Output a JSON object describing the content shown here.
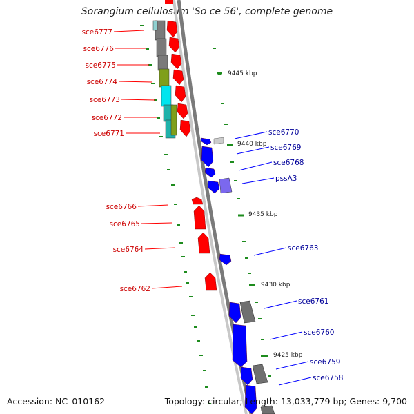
{
  "title": "Sorangium cellulosum 'So ce 56', complete genome",
  "footer": {
    "accession": "Accession: NC_010162",
    "topology": "Topology: circular; Length: 13,033,779 bp; Genes: 9,700"
  },
  "colors": {
    "forward_strand": "#ff0000",
    "reverse_strand": "#0000ff",
    "backbone": "#808080",
    "tick": "#1e8c1e",
    "label_forward": "#cc0000",
    "label_reverse": "#000099"
  },
  "scale_labels": [
    "9445 kbp",
    "9440 kbp",
    "9435 kbp",
    "9430 kbp",
    "9425 kbp"
  ],
  "genes_left": [
    "sce6777",
    "sce6776",
    "sce6775",
    "sce6774",
    "sce6773",
    "sce6772",
    "sce6771",
    "sce6766",
    "sce6765",
    "sce6764",
    "sce6762"
  ],
  "genes_right": [
    "sce6770",
    "sce6769",
    "sce6768",
    "pssA3",
    "sce6763",
    "sce6761",
    "sce6760",
    "sce6759",
    "sce6758"
  ]
}
